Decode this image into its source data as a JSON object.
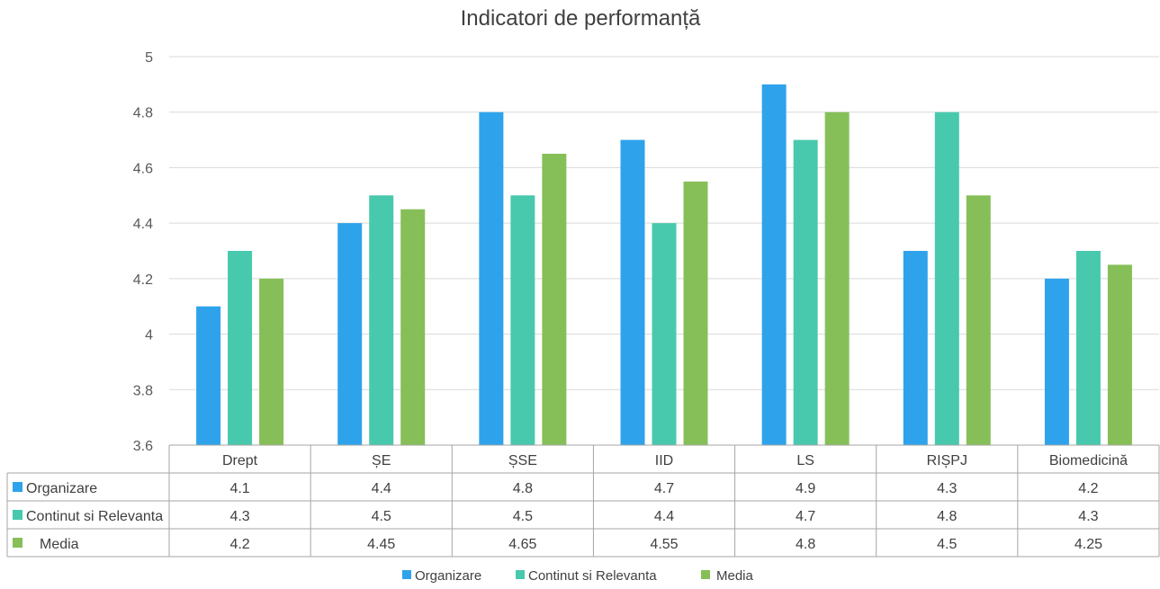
{
  "chart_data": {
    "type": "bar",
    "title": "Indicatori de performanță",
    "categories": [
      "Drept",
      "ȘE",
      "ȘSE",
      "IID",
      "LS",
      "RIȘPJ",
      "Biomedicină"
    ],
    "series": [
      {
        "name": "Organizare",
        "color": "#2EA3EC",
        "values": [
          4.1,
          4.4,
          4.8,
          4.7,
          4.9,
          4.3,
          4.2
        ],
        "table_values": [
          "4.1",
          "4.4",
          "4.8",
          "4.7",
          "4.9",
          "4.3",
          "4.2"
        ]
      },
      {
        "name": "Continut si Relevanta",
        "color": "#48C9AD",
        "values": [
          4.3,
          4.5,
          4.5,
          4.4,
          4.7,
          4.8,
          4.3
        ],
        "table_values": [
          "4.3",
          "4.5",
          "4.5",
          "4.4",
          "4.7",
          "4.8",
          "4.3"
        ]
      },
      {
        "name": "Media",
        "color": "#86BF58",
        "values": [
          4.2,
          4.45,
          4.65,
          4.55,
          4.8,
          4.5,
          4.25
        ],
        "table_values": [
          "4.2",
          "4.45",
          "4.65",
          "4.55",
          "4.8",
          "4.5",
          "4.25"
        ]
      }
    ],
    "ylim": [
      3.6,
      5
    ],
    "yticks": [
      "3.6",
      "3.8",
      "4",
      "4.2",
      "4.4",
      "4.6",
      "4.8",
      "5"
    ],
    "grid": true,
    "legend_position": "bottom",
    "data_table": true,
    "xlabel": "",
    "ylabel": ""
  }
}
